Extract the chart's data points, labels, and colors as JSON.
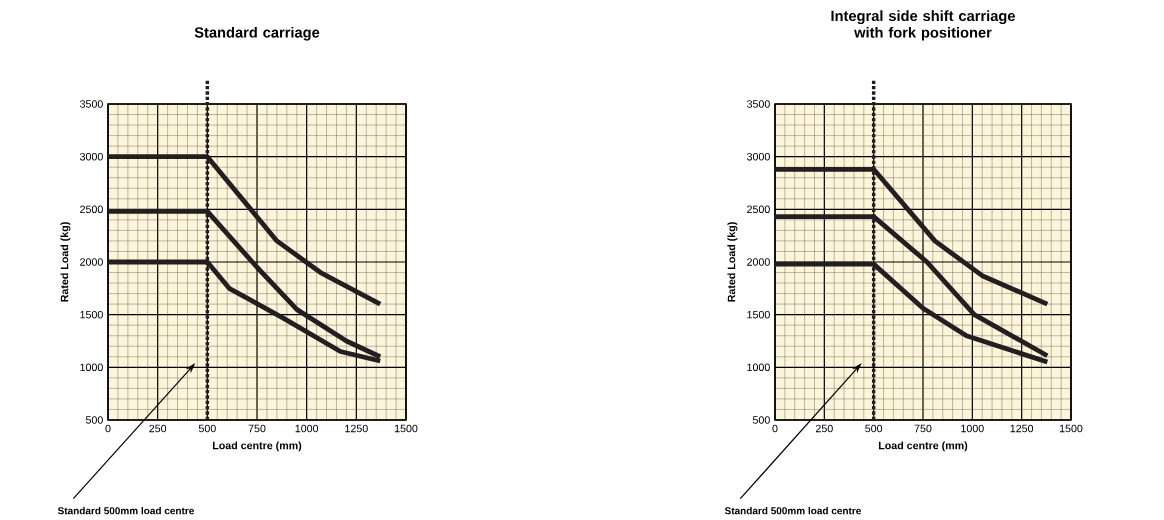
{
  "chart_data": [
    {
      "type": "line",
      "title": "Standard carriage",
      "xlabel": "Load centre (mm)",
      "ylabel": "Rated Load (kg)",
      "xlim": [
        0,
        1500
      ],
      "ylim": [
        500,
        3500
      ],
      "xticks": [
        0,
        250,
        500,
        750,
        1000,
        1250,
        1500
      ],
      "yticks": [
        500,
        1000,
        1500,
        2000,
        2500,
        3000,
        3500
      ],
      "grid": true,
      "ref_lines": [
        {
          "axis": "x",
          "value": 500,
          "label": "Standard 500mm load centre",
          "line_style": "dotted",
          "color": "#231f20"
        }
      ],
      "series": [
        {
          "color": "#231f20",
          "x": [
            0,
            500,
            850,
            1070,
            1370
          ],
          "values": [
            3000,
            3000,
            2200,
            1900,
            1600
          ]
        },
        {
          "color": "#231f20",
          "x": [
            0,
            500,
            750,
            950,
            1200,
            1370
          ],
          "values": [
            2480,
            2480,
            1950,
            1550,
            1250,
            1100
          ]
        },
        {
          "color": "#231f20",
          "x": [
            0,
            500,
            610,
            880,
            1170,
            1370
          ],
          "values": [
            2000,
            2000,
            1750,
            1470,
            1150,
            1060
          ]
        }
      ]
    },
    {
      "type": "line",
      "title": "Integral side shift carriage with fork positioner",
      "xlabel": "Load centre (mm)",
      "ylabel": "Rated Load (kg)",
      "xlim": [
        0,
        1500
      ],
      "ylim": [
        500,
        3500
      ],
      "xticks": [
        0,
        250,
        500,
        750,
        1000,
        1250,
        1500
      ],
      "yticks": [
        500,
        1000,
        1500,
        2000,
        2500,
        3000,
        3500
      ],
      "grid": true,
      "ref_lines": [
        {
          "axis": "x",
          "value": 500,
          "label": "Standard 500mm load centre",
          "line_style": "dotted",
          "color": "#231f20"
        }
      ],
      "series": [
        {
          "color": "#231f20",
          "x": [
            0,
            500,
            810,
            1050,
            1380
          ],
          "values": [
            2880,
            2880,
            2200,
            1870,
            1600
          ]
        },
        {
          "color": "#231f20",
          "x": [
            0,
            500,
            770,
            1010,
            1380
          ],
          "values": [
            2430,
            2430,
            2000,
            1500,
            1110
          ]
        },
        {
          "color": "#231f20",
          "x": [
            0,
            500,
            750,
            970,
            1380
          ],
          "values": [
            1980,
            1980,
            1560,
            1300,
            1050
          ]
        }
      ]
    }
  ]
}
